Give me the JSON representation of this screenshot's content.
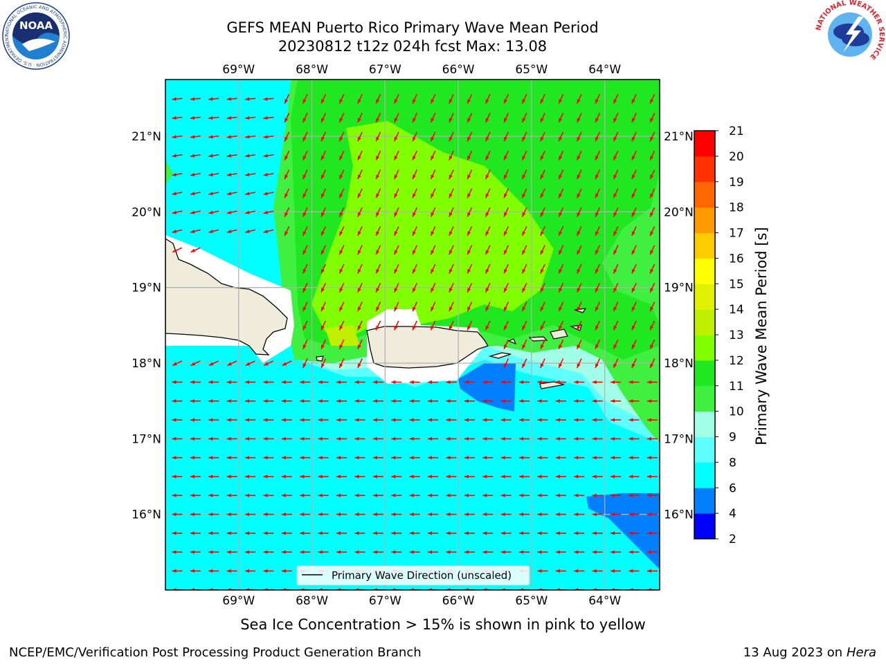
{
  "header": {
    "title_line1": "GEFS MEAN Puerto Rico Primary Wave Mean Period",
    "title_line2": "20230812 t12z 024h fcst   Max: 13.08"
  },
  "logos": {
    "left": "NOAA",
    "left_ring_text": "NATIONAL OCEANIC AND ATMOSPHERIC ADMINISTRATION · U.S. DEPARTMENT OF COMMERCE",
    "right_ring_text": "NATIONAL WEATHER SERVICE"
  },
  "map": {
    "lon_labels": [
      "69°W",
      "68°W",
      "67°W",
      "66°W",
      "65°W",
      "64°W"
    ],
    "lat_labels": [
      "21°N",
      "20°N",
      "19°N",
      "18°N",
      "17°N",
      "16°N"
    ],
    "lon_range": [
      -70.0,
      -63.25
    ],
    "lat_range": [
      15.0,
      21.75
    ],
    "legend_label": "Primary Wave Direction (unscaled)",
    "arrow_color": "#ff0000",
    "land_color": "#efecdc"
  },
  "colorbar": {
    "label": "Primary Wave Mean Period [s]",
    "ticks": [
      "2",
      "4",
      "6",
      "8",
      "9",
      "10",
      "11",
      "12",
      "13",
      "14",
      "15",
      "16",
      "17",
      "18",
      "19",
      "20",
      "21"
    ],
    "colors": [
      "#0000ff",
      "#0080ff",
      "#00ffff",
      "#60ffff",
      "#a0ffe6",
      "#40f040",
      "#20e820",
      "#80ff00",
      "#c0f000",
      "#e0f000",
      "#ffff00",
      "#ffcc00",
      "#ff9900",
      "#ff6600",
      "#ff3300",
      "#ff0000"
    ]
  },
  "footer": {
    "note": "Sea Ice Concentration > 15% is shown in pink to yellow",
    "left": "NCEP/EMC/Verification Post Processing Product Generation Branch",
    "right_date": "13 Aug 2023 on",
    "right_host": "Hera"
  }
}
